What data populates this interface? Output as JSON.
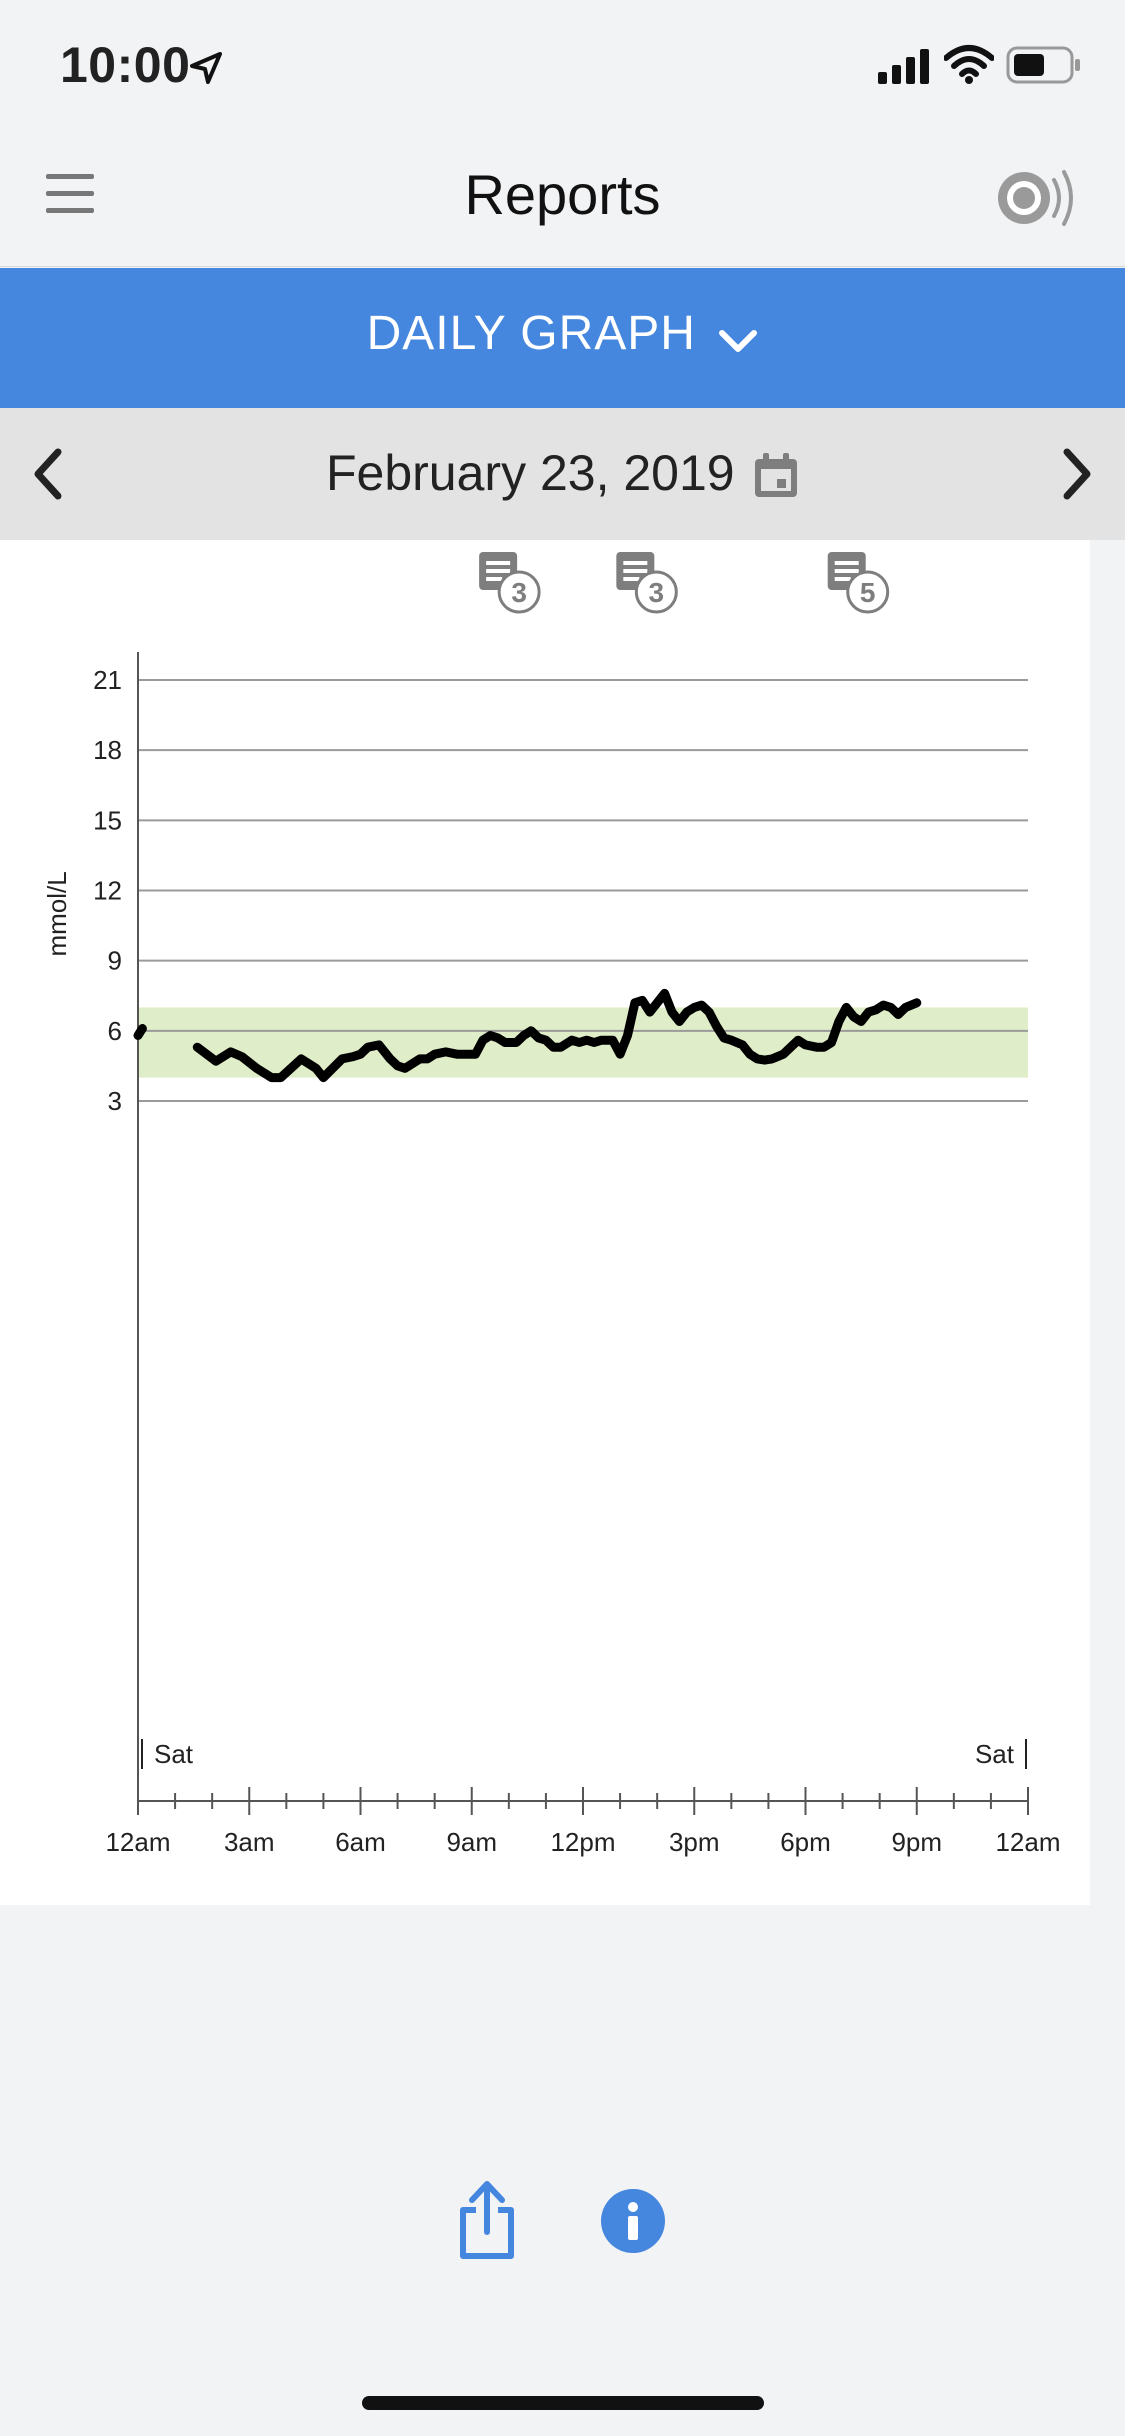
{
  "status_bar": {
    "time": "10:00"
  },
  "nav": {
    "title": "Reports"
  },
  "report_selector": {
    "label": "DAILY GRAPH"
  },
  "date_nav": {
    "date": "February 23, 2019"
  },
  "colors": {
    "accent": "#4586df",
    "target_band": "#dfeec8",
    "line": "#000000",
    "grid": "#9a9a9a"
  },
  "icons": [
    "location-arrow-icon",
    "signal-icon",
    "wifi-icon",
    "battery-icon",
    "menu-icon",
    "sensor-icon",
    "chevron-down-icon",
    "chevron-left-icon",
    "chevron-right-icon",
    "calendar-icon",
    "note-icon",
    "share-icon",
    "info-icon"
  ],
  "chart_data": {
    "type": "line",
    "ylabel": "mmol/L",
    "xlabel": "",
    "ylim": [
      0,
      22
    ],
    "xlim": [
      0,
      24
    ],
    "yticks": [
      3,
      6,
      9,
      12,
      15,
      18,
      21
    ],
    "xtick_labels": [
      "12am",
      "3am",
      "6am",
      "9am",
      "12pm",
      "3pm",
      "6pm",
      "9pm",
      "12am"
    ],
    "day_labels": {
      "start": "Sat",
      "end": "Sat"
    },
    "target_range": [
      4,
      7
    ],
    "grid": true,
    "notes": [
      {
        "x": 9.9,
        "count": "3"
      },
      {
        "x": 13.6,
        "count": "3"
      },
      {
        "x": 19.3,
        "count": "5"
      }
    ],
    "series": [
      {
        "segments": [
          [
            [
              0.0,
              5.8
            ],
            [
              0.12,
              6.1
            ]
          ],
          [
            [
              1.6,
              5.3
            ],
            [
              2.1,
              4.7
            ],
            [
              2.5,
              5.1
            ],
            [
              2.8,
              4.9
            ],
            [
              3.2,
              4.4
            ],
            [
              3.6,
              4.0
            ],
            [
              3.85,
              4.0
            ],
            [
              4.4,
              4.8
            ],
            [
              4.8,
              4.4
            ],
            [
              5.0,
              4.0
            ],
            [
              5.5,
              4.8
            ],
            [
              5.8,
              4.9
            ],
            [
              6.0,
              5.0
            ],
            [
              6.2,
              5.3
            ],
            [
              6.5,
              5.4
            ],
            [
              6.8,
              4.8
            ],
            [
              7.0,
              4.5
            ],
            [
              7.2,
              4.4
            ],
            [
              7.6,
              4.8
            ],
            [
              7.8,
              4.8
            ],
            [
              8.0,
              5.0
            ],
            [
              8.3,
              5.1
            ],
            [
              8.6,
              5.0
            ],
            [
              9.1,
              5.0
            ],
            [
              9.3,
              5.6
            ],
            [
              9.5,
              5.8
            ],
            [
              9.7,
              5.7
            ],
            [
              9.9,
              5.5
            ],
            [
              10.2,
              5.5
            ],
            [
              10.4,
              5.8
            ],
            [
              10.6,
              6.0
            ],
            [
              10.8,
              5.7
            ],
            [
              11.0,
              5.6
            ],
            [
              11.2,
              5.3
            ],
            [
              11.4,
              5.3
            ],
            [
              11.7,
              5.6
            ],
            [
              11.9,
              5.5
            ],
            [
              12.1,
              5.6
            ],
            [
              12.3,
              5.5
            ],
            [
              12.5,
              5.6
            ],
            [
              12.8,
              5.6
            ],
            [
              13.0,
              5.0
            ],
            [
              13.2,
              5.8
            ],
            [
              13.4,
              7.2
            ],
            [
              13.6,
              7.3
            ],
            [
              13.8,
              6.8
            ],
            [
              14.0,
              7.2
            ],
            [
              14.2,
              7.6
            ],
            [
              14.4,
              6.8
            ],
            [
              14.6,
              6.4
            ],
            [
              14.8,
              6.8
            ],
            [
              15.0,
              7.0
            ],
            [
              15.2,
              7.1
            ],
            [
              15.4,
              6.8
            ],
            [
              15.6,
              6.2
            ],
            [
              15.8,
              5.7
            ],
            [
              16.0,
              5.6
            ],
            [
              16.3,
              5.4
            ],
            [
              16.5,
              5.0
            ],
            [
              16.7,
              4.8
            ],
            [
              16.9,
              4.75
            ],
            [
              17.1,
              4.8
            ],
            [
              17.4,
              5.0
            ],
            [
              17.6,
              5.3
            ],
            [
              17.8,
              5.6
            ],
            [
              18.0,
              5.4
            ],
            [
              18.3,
              5.3
            ],
            [
              18.5,
              5.3
            ],
            [
              18.7,
              5.5
            ],
            [
              18.9,
              6.4
            ],
            [
              19.1,
              7.0
            ],
            [
              19.3,
              6.6
            ],
            [
              19.5,
              6.4
            ],
            [
              19.7,
              6.8
            ],
            [
              19.9,
              6.9
            ],
            [
              20.1,
              7.1
            ],
            [
              20.3,
              7.0
            ],
            [
              20.5,
              6.7
            ],
            [
              20.7,
              7.0
            ],
            [
              21.0,
              7.2
            ]
          ]
        ]
      }
    ]
  }
}
